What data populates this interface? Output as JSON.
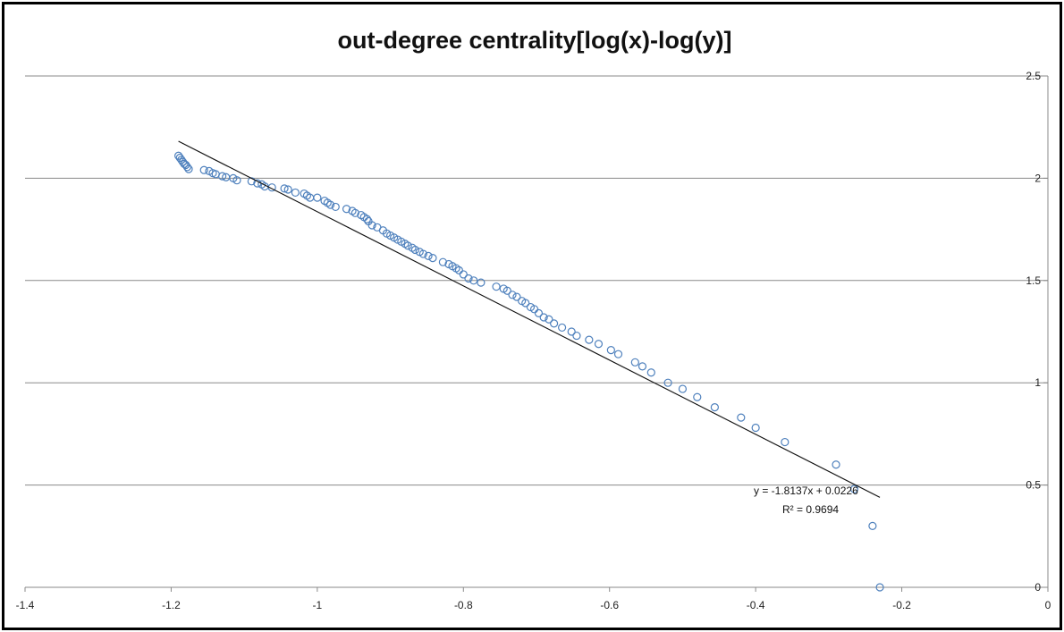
{
  "chart_data": {
    "type": "scatter",
    "title": "out-degree centrality[log(x)-log(y)]",
    "xlim": [
      -1.4,
      0
    ],
    "ylim": [
      0,
      2.5
    ],
    "xticks": [
      -1.4,
      -1.2,
      -1,
      -0.8,
      -0.6,
      -0.4,
      -0.2,
      0
    ],
    "xtick_labels": [
      "-1.4",
      "-1.2",
      "-1",
      "-0.8",
      "-0.6",
      "-0.4",
      "-0.2",
      "0"
    ],
    "yticks": [
      0,
      0.5,
      1,
      1.5,
      2,
      2.5
    ],
    "ytick_labels": [
      "0",
      "0.5",
      "1",
      "1.5",
      "2",
      "2.5"
    ],
    "y_axis_position": "right",
    "gridlines": "horizontal",
    "marker_color": "#4f81bd",
    "trendline": {
      "type": "linear",
      "slope": -1.8137,
      "intercept": 0.0226,
      "x_range": [
        -1.19,
        -0.23
      ],
      "equation": "y = -1.8137x + 0.0226",
      "r_squared": "R² = 0.9694"
    },
    "points": [
      [
        -1.19,
        2.11
      ],
      [
        -1.188,
        2.1
      ],
      [
        -1.186,
        2.09
      ],
      [
        -1.184,
        2.08
      ],
      [
        -1.182,
        2.07
      ],
      [
        -1.18,
        2.065
      ],
      [
        -1.178,
        2.055
      ],
      [
        -1.176,
        2.045
      ],
      [
        -1.155,
        2.04
      ],
      [
        -1.148,
        2.035
      ],
      [
        -1.143,
        2.025
      ],
      [
        -1.139,
        2.02
      ],
      [
        -1.13,
        2.01
      ],
      [
        -1.125,
        2.005
      ],
      [
        -1.115,
        2.0
      ],
      [
        -1.11,
        1.99
      ],
      [
        -1.09,
        1.985
      ],
      [
        -1.082,
        1.975
      ],
      [
        -1.076,
        1.97
      ],
      [
        -1.072,
        1.96
      ],
      [
        -1.062,
        1.955
      ],
      [
        -1.045,
        1.95
      ],
      [
        -1.04,
        1.945
      ],
      [
        -1.03,
        1.93
      ],
      [
        -1.018,
        1.925
      ],
      [
        -1.014,
        1.915
      ],
      [
        -1.01,
        1.905
      ],
      [
        -1.0,
        1.905
      ],
      [
        -0.99,
        1.89
      ],
      [
        -0.986,
        1.88
      ],
      [
        -0.982,
        1.87
      ],
      [
        -0.975,
        1.86
      ],
      [
        -0.96,
        1.85
      ],
      [
        -0.952,
        1.84
      ],
      [
        -0.948,
        1.83
      ],
      [
        -0.94,
        1.82
      ],
      [
        -0.936,
        1.81
      ],
      [
        -0.932,
        1.8
      ],
      [
        -0.93,
        1.79
      ],
      [
        -0.925,
        1.77
      ],
      [
        -0.918,
        1.76
      ],
      [
        -0.91,
        1.745
      ],
      [
        -0.905,
        1.73
      ],
      [
        -0.9,
        1.72
      ],
      [
        -0.895,
        1.71
      ],
      [
        -0.89,
        1.7
      ],
      [
        -0.885,
        1.69
      ],
      [
        -0.88,
        1.68
      ],
      [
        -0.876,
        1.67
      ],
      [
        -0.87,
        1.66
      ],
      [
        -0.866,
        1.65
      ],
      [
        -0.86,
        1.64
      ],
      [
        -0.855,
        1.63
      ],
      [
        -0.848,
        1.62
      ],
      [
        -0.842,
        1.61
      ],
      [
        -0.828,
        1.59
      ],
      [
        -0.82,
        1.58
      ],
      [
        -0.815,
        1.57
      ],
      [
        -0.81,
        1.56
      ],
      [
        -0.806,
        1.55
      ],
      [
        -0.8,
        1.53
      ],
      [
        -0.793,
        1.51
      ],
      [
        -0.786,
        1.5
      ],
      [
        -0.776,
        1.49
      ],
      [
        -0.755,
        1.47
      ],
      [
        -0.745,
        1.46
      ],
      [
        -0.74,
        1.45
      ],
      [
        -0.733,
        1.43
      ],
      [
        -0.727,
        1.42
      ],
      [
        -0.72,
        1.4
      ],
      [
        -0.715,
        1.39
      ],
      [
        -0.708,
        1.37
      ],
      [
        -0.703,
        1.36
      ],
      [
        -0.697,
        1.34
      ],
      [
        -0.69,
        1.32
      ],
      [
        -0.683,
        1.31
      ],
      [
        -0.676,
        1.29
      ],
      [
        -0.665,
        1.27
      ],
      [
        -0.652,
        1.25
      ],
      [
        -0.645,
        1.23
      ],
      [
        -0.628,
        1.21
      ],
      [
        -0.615,
        1.19
      ],
      [
        -0.598,
        1.16
      ],
      [
        -0.588,
        1.14
      ],
      [
        -0.565,
        1.1
      ],
      [
        -0.555,
        1.08
      ],
      [
        -0.543,
        1.05
      ],
      [
        -0.52,
        1.0
      ],
      [
        -0.5,
        0.97
      ],
      [
        -0.48,
        0.93
      ],
      [
        -0.456,
        0.88
      ],
      [
        -0.42,
        0.83
      ],
      [
        -0.4,
        0.78
      ],
      [
        -0.36,
        0.71
      ],
      [
        -0.29,
        0.6
      ],
      [
        -0.265,
        0.48
      ],
      [
        -0.24,
        0.3
      ],
      [
        -0.23,
        0.0
      ]
    ]
  }
}
